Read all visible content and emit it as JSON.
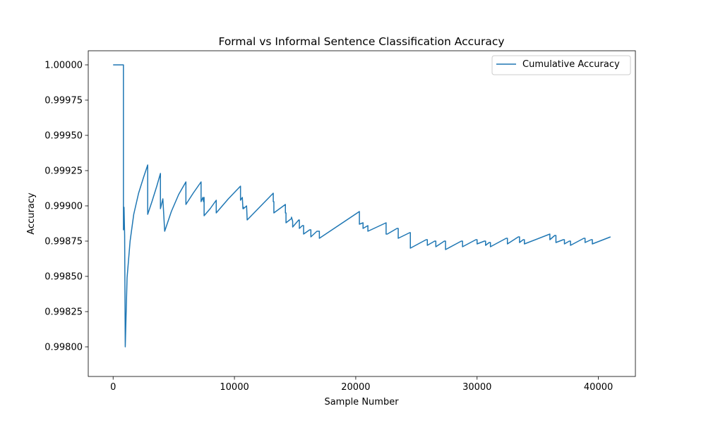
{
  "chart_data": {
    "type": "line",
    "title": "Formal vs Informal Sentence Classification Accuracy",
    "xlabel": "Sample Number",
    "ylabel": "Accuracy",
    "xlim": [
      -2050,
      43050
    ],
    "ylim": [
      0.99779,
      1.0001
    ],
    "x_ticks": [
      0,
      10000,
      20000,
      30000,
      40000
    ],
    "y_ticks": [
      0.998,
      0.99825,
      0.9985,
      0.99875,
      0.999,
      0.99925,
      0.9995,
      0.99975,
      1.0
    ],
    "x_tick_labels": [
      "0",
      "10000",
      "20000",
      "30000",
      "40000"
    ],
    "y_tick_labels": [
      "0.99800",
      "0.99825",
      "0.99850",
      "0.99875",
      "0.99900",
      "0.99925",
      "0.99950",
      "0.99975",
      "1.00000"
    ],
    "legend": {
      "position": "top-right"
    },
    "series": [
      {
        "name": "Cumulative Accuracy",
        "color": "#1f77b4",
        "x": [
          0,
          850,
          850,
          900,
          950,
          950,
          1000,
          1000,
          1150,
          1400,
          1700,
          2100,
          2500,
          2850,
          2850,
          3200,
          3600,
          3900,
          3900,
          4100,
          4250,
          4250,
          4800,
          5400,
          6000,
          6000,
          6600,
          7250,
          7250,
          7400,
          7450,
          7500,
          7500,
          8000,
          8500,
          8500,
          9500,
          10500,
          10500,
          10650,
          10700,
          10750,
          10750,
          11000,
          11050,
          11050,
          13200,
          13200,
          13250,
          13250,
          14200,
          14200,
          14250,
          14250,
          14700,
          14700,
          14800,
          14800,
          15300,
          15350,
          15350,
          15600,
          15700,
          15700,
          16200,
          16300,
          16300,
          16800,
          17000,
          17000,
          20300,
          20300,
          20600,
          20600,
          21000,
          21000,
          22500,
          22500,
          22600,
          22600,
          23400,
          23500,
          23500,
          24450,
          24500,
          24500,
          25800,
          25900,
          25900,
          26500,
          26600,
          26600,
          27300,
          27400,
          27400,
          28700,
          28800,
          28800,
          29900,
          30000,
          30000,
          30600,
          30700,
          30700,
          31000,
          31100,
          31100,
          32400,
          32500,
          32500,
          33400,
          33500,
          33500,
          33800,
          33900,
          33900,
          36000,
          36000,
          36400,
          36500,
          36500,
          37100,
          37200,
          37200,
          37600,
          37700,
          37700,
          38800,
          38900,
          38900,
          39400,
          39500,
          39500,
          41000
        ],
        "y": [
          1.0,
          1.0,
          0.99883,
          0.99899,
          0.99879,
          0.99879,
          0.998,
          0.998,
          0.99849,
          0.99875,
          0.99894,
          0.99909,
          0.9992,
          0.99929,
          0.99894,
          0.99903,
          0.99914,
          0.99923,
          0.99898,
          0.99905,
          0.99882,
          0.99882,
          0.99896,
          0.99908,
          0.99917,
          0.99901,
          0.99909,
          0.99917,
          0.99903,
          0.99906,
          0.99903,
          0.99906,
          0.99893,
          0.99898,
          0.99904,
          0.99895,
          0.99905,
          0.99914,
          0.99904,
          0.99906,
          0.99898,
          0.99899,
          0.99898,
          0.999,
          0.9989,
          0.9989,
          0.99909,
          0.99903,
          0.99903,
          0.99895,
          0.99901,
          0.99895,
          0.99895,
          0.99888,
          0.99891,
          0.99892,
          0.99889,
          0.99885,
          0.9989,
          0.9989,
          0.99884,
          0.99886,
          0.99886,
          0.9988,
          0.99883,
          0.99883,
          0.99878,
          0.99882,
          0.99882,
          0.99877,
          0.99896,
          0.99887,
          0.99888,
          0.99884,
          0.99886,
          0.99882,
          0.99888,
          0.9988,
          0.9988,
          0.9988,
          0.99884,
          0.99884,
          0.99877,
          0.99881,
          0.99881,
          0.9987,
          0.99876,
          0.99876,
          0.99872,
          0.99875,
          0.99875,
          0.99871,
          0.99875,
          0.99875,
          0.99869,
          0.99875,
          0.99875,
          0.99871,
          0.99876,
          0.99876,
          0.99873,
          0.99875,
          0.99875,
          0.99872,
          0.99874,
          0.99874,
          0.99871,
          0.99877,
          0.99877,
          0.99873,
          0.99878,
          0.99878,
          0.99874,
          0.99876,
          0.99876,
          0.99873,
          0.9988,
          0.99876,
          0.99879,
          0.99879,
          0.99874,
          0.99876,
          0.99876,
          0.99873,
          0.99875,
          0.99875,
          0.99872,
          0.99877,
          0.99877,
          0.99874,
          0.99876,
          0.99876,
          0.99873,
          0.99878
        ]
      }
    ]
  }
}
